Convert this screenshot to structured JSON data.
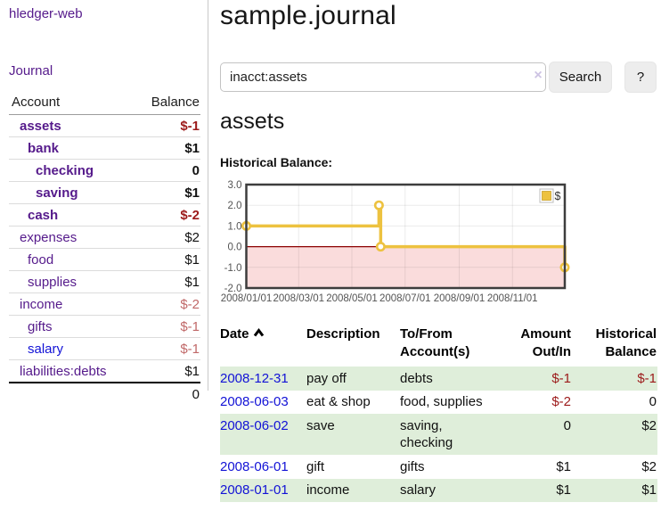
{
  "app": {
    "brand": "hledger-web",
    "nav_journal": "Journal"
  },
  "colors": {
    "purple": "#551a8b",
    "blue": "#1212d6",
    "neg-strong": "#9c1a1a",
    "neg-soft": "#c06868",
    "stripe": "#dfeeda",
    "btn-bg": "#ededed"
  },
  "sidebar": {
    "header": {
      "account": "Account",
      "balance": "Balance"
    },
    "rows": [
      {
        "name": "assets",
        "balance": "$-1",
        "level": 1,
        "style": "bold",
        "link_style": "purple",
        "balance_style": "neg-strong"
      },
      {
        "name": "bank",
        "balance": "$1",
        "level": 2,
        "style": "bold",
        "link_style": "purple",
        "balance_style": "normal"
      },
      {
        "name": "checking",
        "balance": "0",
        "level": 3,
        "style": "bold",
        "link_style": "purple",
        "balance_style": "normal"
      },
      {
        "name": "saving",
        "balance": "$1",
        "level": 3,
        "style": "bold",
        "link_style": "purple",
        "balance_style": "normal"
      },
      {
        "name": "cash",
        "balance": "$-2",
        "level": 2,
        "style": "bold",
        "link_style": "purple",
        "balance_style": "neg-strong"
      },
      {
        "name": "expenses",
        "balance": "$2",
        "level": 1,
        "style": "normal",
        "link_style": "purple",
        "balance_style": "normal"
      },
      {
        "name": "food",
        "balance": "$1",
        "level": 2,
        "style": "normal",
        "link_style": "purple",
        "balance_style": "normal"
      },
      {
        "name": "supplies",
        "balance": "$1",
        "level": 2,
        "style": "normal",
        "link_style": "purple",
        "balance_style": "normal"
      },
      {
        "name": "income",
        "balance": "$-2",
        "level": 1,
        "style": "normal",
        "link_style": "purple",
        "balance_style": "neg-soft"
      },
      {
        "name": "gifts",
        "balance": "$-1",
        "level": 2,
        "style": "normal",
        "link_style": "purple",
        "balance_style": "neg-soft"
      },
      {
        "name": "salary",
        "balance": "$-1",
        "level": 2,
        "style": "normal",
        "link_style": "blue",
        "balance_style": "neg-soft"
      },
      {
        "name": "liabilities:debts",
        "balance": "$1",
        "level": 1,
        "style": "normal",
        "link_style": "purple",
        "balance_style": "normal"
      }
    ],
    "total": "0"
  },
  "header": {
    "title": "sample.journal"
  },
  "search": {
    "value": "inacct:assets",
    "clear_icon": "×",
    "button_label": "Search",
    "help_label": "?"
  },
  "account_page": {
    "heading": "assets",
    "chart_label": "Historical Balance:"
  },
  "chart_data": {
    "type": "line",
    "style": "step",
    "title": "Historical Balance",
    "series": [
      {
        "name": "$",
        "color": "#EDC240",
        "points": [
          [
            "2008-01-01",
            1
          ],
          [
            "2008-06-01",
            2
          ],
          [
            "2008-06-03",
            0
          ],
          [
            "2008-12-31",
            -1
          ]
        ]
      }
    ],
    "x_range": [
      "2008-01-01",
      "2008-12-31"
    ],
    "ylim": [
      -2,
      3
    ],
    "yticks": [
      3,
      2,
      1,
      0,
      -1,
      -2
    ],
    "ytick_labels": [
      "3.0",
      "2.0",
      "1.0",
      "0.0",
      "-1.0",
      "-2.0"
    ],
    "xtick_dates": [
      "2008-01-01",
      "2008-03-01",
      "2008-05-01",
      "2008-07-01",
      "2008-09-01",
      "2008-11-01"
    ],
    "xtick_labels": [
      "2008/01/01",
      "2008/03/01",
      "2008/05/01",
      "2008/07/01",
      "2008/09/01",
      "2008/11/01"
    ],
    "grid": true,
    "legend": {
      "label": "$",
      "position": "top-right"
    },
    "negative_fill": "#fadcdc",
    "zero_line": "#8b0000"
  },
  "register": {
    "columns": {
      "date": "Date",
      "description": "Description",
      "accounts": "To/From Account(s)",
      "amount": "Amount Out/In",
      "balance": "Historical Balance"
    },
    "sort": {
      "column": "date",
      "direction": "ascending"
    },
    "rows": [
      {
        "date": "2008-12-31",
        "description": "pay off",
        "accounts": "debts",
        "amount": "$-1",
        "balance": "$-1",
        "amount_style": "neg-strong",
        "balance_style": "neg-strong"
      },
      {
        "date": "2008-06-03",
        "description": "eat & shop",
        "accounts": "food, supplies",
        "amount": "$-2",
        "balance": "0",
        "amount_style": "neg-strong",
        "balance_style": "normal"
      },
      {
        "date": "2008-06-02",
        "description": "save",
        "accounts": "saving, checking",
        "amount": "0",
        "balance": "$2",
        "amount_style": "normal",
        "balance_style": "normal"
      },
      {
        "date": "2008-06-01",
        "description": "gift",
        "accounts": "gifts",
        "amount": "$1",
        "balance": "$2",
        "amount_style": "normal",
        "balance_style": "normal"
      },
      {
        "date": "2008-01-01",
        "description": "income",
        "accounts": "salary",
        "amount": "$1",
        "balance": "$1",
        "amount_style": "normal",
        "balance_style": "normal"
      }
    ]
  }
}
